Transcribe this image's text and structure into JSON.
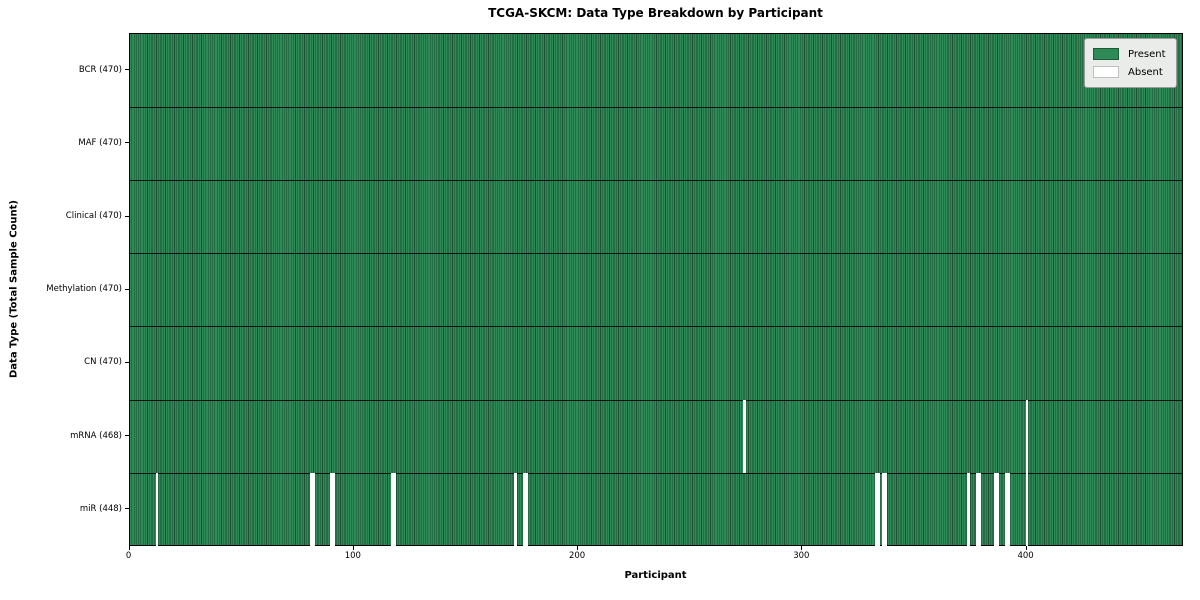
{
  "title": "TCGA-SKCM: Data Type Breakdown by Participant",
  "axes": {
    "x_label": "Participant",
    "y_label": "Data Type (Total Sample Count)"
  },
  "legend": {
    "items": [
      {
        "label": "Present",
        "color": "#2e8b57"
      },
      {
        "label": "Absent",
        "color": "#ffffff"
      }
    ]
  },
  "colors": {
    "present": "#2e8b57",
    "cell_edge": "#1c5233",
    "absent": "#ffffff"
  },
  "chart_data": {
    "type": "heatmap",
    "title": "TCGA-SKCM: Data Type Breakdown by Participant",
    "xlabel": "Participant",
    "ylabel": "Data Type (Total Sample Count)",
    "legend_entries": [
      "Present",
      "Absent"
    ],
    "legend_position": "upper right",
    "n_participants": 470,
    "x_range": [
      0,
      470
    ],
    "x_ticks": [
      0,
      100,
      200,
      300,
      400
    ],
    "rows": [
      {
        "label": "BCR (470)",
        "data_type": "BCR",
        "present_count": 470,
        "absent_participants": []
      },
      {
        "label": "MAF (470)",
        "data_type": "MAF",
        "present_count": 470,
        "absent_participants": []
      },
      {
        "label": "Clinical (470)",
        "data_type": "Clinical",
        "present_count": 470,
        "absent_participants": []
      },
      {
        "label": "Methylation (470)",
        "data_type": "Methylation",
        "present_count": 470,
        "absent_participants": []
      },
      {
        "label": "CN (470)",
        "data_type": "CN",
        "present_count": 470,
        "absent_participants": []
      },
      {
        "label": "mRNA (468)",
        "data_type": "mRNA",
        "present_count": 468,
        "absent_participants": [
          274,
          400
        ]
      },
      {
        "label": "miR (448)",
        "data_type": "miR",
        "present_count": 448,
        "absent_participants": [
          12,
          81,
          82,
          90,
          91,
          117,
          118,
          172,
          176,
          177,
          333,
          334,
          336,
          337,
          374,
          378,
          379,
          386,
          387,
          391,
          392,
          400
        ]
      }
    ]
  }
}
